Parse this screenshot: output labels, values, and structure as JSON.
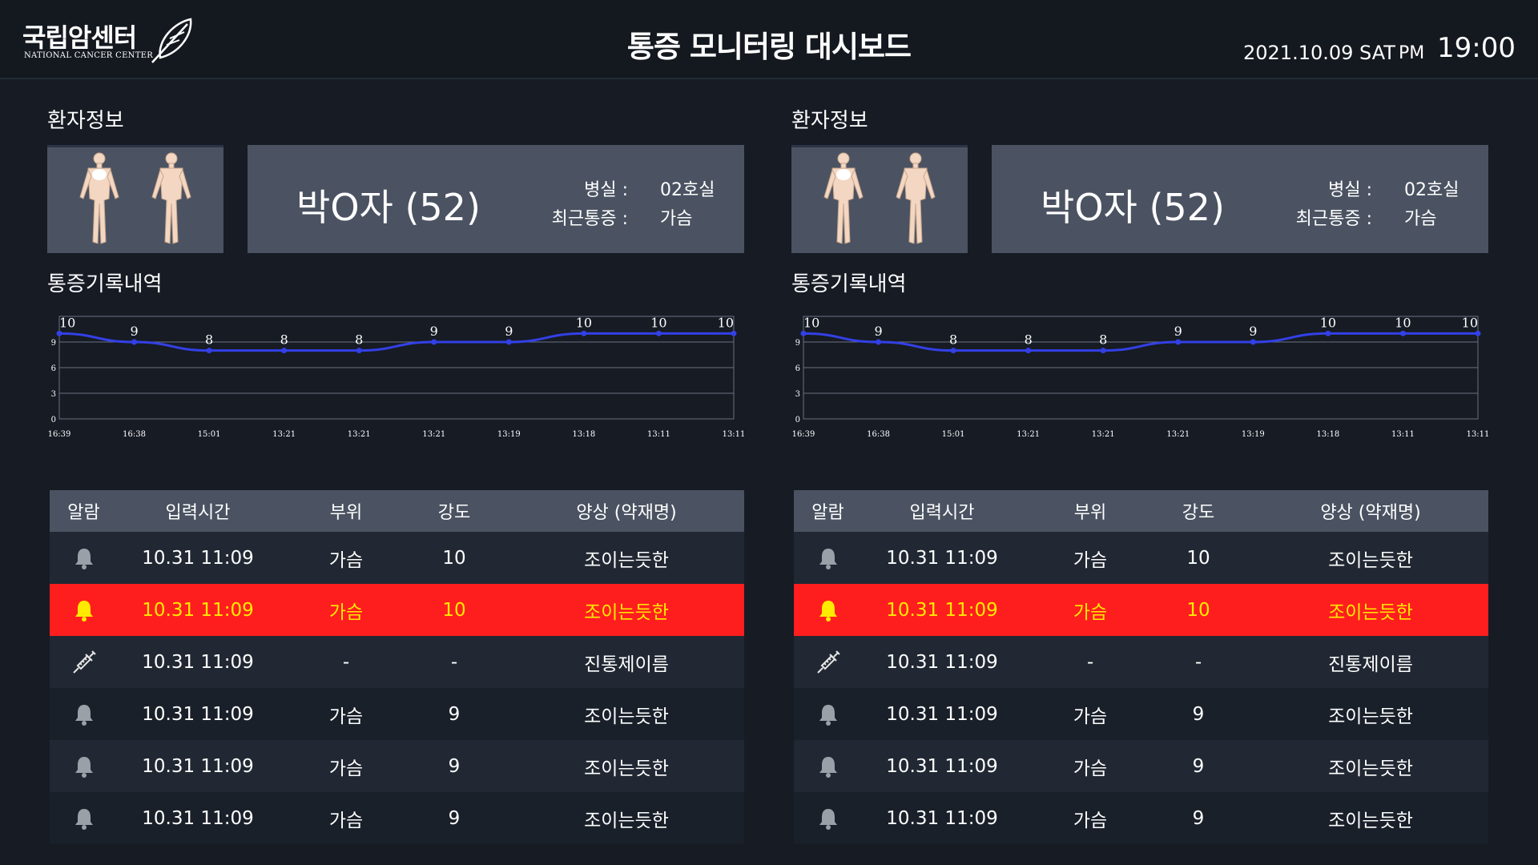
{
  "header": {
    "logo_ko": "국립암센터",
    "logo_en": "NATIONAL CANCER CENTER",
    "title": "통증 모니터링 대시보드",
    "date": "2021.10.09 SAT",
    "ampm": "PM",
    "time": "19:00"
  },
  "colors": {
    "alert_row": "#ff1e1e",
    "alert_text": "#ffeb00",
    "chart_line": "#3340e6",
    "panel_bg": "#4b5362"
  },
  "panels": [
    {
      "patient_section_label": "환자정보",
      "patient": {
        "name": "박O자 (52)",
        "room_label": "병실 :",
        "room_value": "02호실",
        "recent_pain_label": "최근통증 :",
        "recent_pain_value": "가슴"
      },
      "history_section_label": "통증기록내역",
      "table": {
        "headers": [
          "알람",
          "입력시간",
          "부위",
          "강도",
          "양상 (약재명)"
        ],
        "rows": [
          {
            "icon": "bell-icon",
            "time": "10.31 11:09",
            "site": "가슴",
            "intensity": "10",
            "pattern": "조이는듯한",
            "alert": false
          },
          {
            "icon": "bell-icon",
            "time": "10.31 11:09",
            "site": "가슴",
            "intensity": "10",
            "pattern": "조이는듯한",
            "alert": true
          },
          {
            "icon": "syringe-icon",
            "time": "10.31 11:09",
            "site": "-",
            "intensity": "-",
            "pattern": "진통제이름",
            "alert": false
          },
          {
            "icon": "bell-icon",
            "time": "10.31 11:09",
            "site": "가슴",
            "intensity": "9",
            "pattern": "조이는듯한",
            "alert": false
          },
          {
            "icon": "bell-icon",
            "time": "10.31 11:09",
            "site": "가슴",
            "intensity": "9",
            "pattern": "조이는듯한",
            "alert": false
          },
          {
            "icon": "bell-icon",
            "time": "10.31 11:09",
            "site": "가슴",
            "intensity": "9",
            "pattern": "조이는듯한",
            "alert": false
          }
        ]
      }
    },
    {
      "patient_section_label": "환자정보",
      "patient": {
        "name": "박O자 (52)",
        "room_label": "병실 :",
        "room_value": "02호실",
        "recent_pain_label": "최근통증 :",
        "recent_pain_value": "가슴"
      },
      "history_section_label": "통증기록내역",
      "table": {
        "headers": [
          "알람",
          "입력시간",
          "부위",
          "강도",
          "양상 (약재명)"
        ],
        "rows": [
          {
            "icon": "bell-icon",
            "time": "10.31 11:09",
            "site": "가슴",
            "intensity": "10",
            "pattern": "조이는듯한",
            "alert": false
          },
          {
            "icon": "bell-icon",
            "time": "10.31 11:09",
            "site": "가슴",
            "intensity": "10",
            "pattern": "조이는듯한",
            "alert": true
          },
          {
            "icon": "syringe-icon",
            "time": "10.31 11:09",
            "site": "-",
            "intensity": "-",
            "pattern": "진통제이름",
            "alert": false
          },
          {
            "icon": "bell-icon",
            "time": "10.31 11:09",
            "site": "가슴",
            "intensity": "9",
            "pattern": "조이는듯한",
            "alert": false
          },
          {
            "icon": "bell-icon",
            "time": "10.31 11:09",
            "site": "가슴",
            "intensity": "9",
            "pattern": "조이는듯한",
            "alert": false
          },
          {
            "icon": "bell-icon",
            "time": "10.31 11:09",
            "site": "가슴",
            "intensity": "9",
            "pattern": "조이는듯한",
            "alert": false
          }
        ]
      }
    }
  ],
  "chart_data": [
    {
      "type": "line",
      "x": [
        "16:39",
        "16:38",
        "15:01",
        "13:21",
        "13:21",
        "13:21",
        "13:19",
        "13:18",
        "13:11",
        "13:11"
      ],
      "values": [
        10,
        9,
        8,
        8,
        8,
        9,
        9,
        10,
        10,
        10
      ],
      "yticks": [
        0,
        3,
        6,
        9
      ],
      "ylim": [
        0,
        12
      ],
      "grid": true
    },
    {
      "type": "line",
      "x": [
        "16:39",
        "16:38",
        "15:01",
        "13:21",
        "13:21",
        "13:21",
        "13:19",
        "13:18",
        "13:11",
        "13:11"
      ],
      "values": [
        10,
        9,
        8,
        8,
        8,
        9,
        9,
        10,
        10,
        10
      ],
      "yticks": [
        0,
        3,
        6,
        9
      ],
      "ylim": [
        0,
        12
      ],
      "grid": true
    }
  ]
}
